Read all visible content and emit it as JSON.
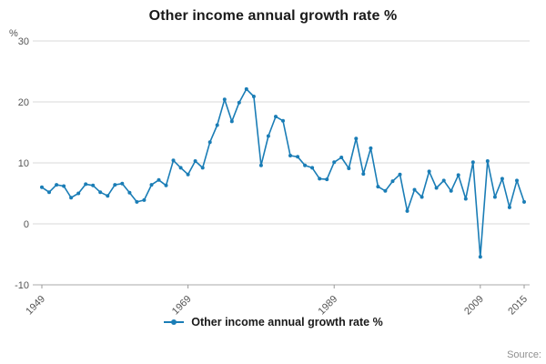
{
  "chart_data": {
    "type": "line",
    "title": "Other income annual growth rate %",
    "y_unit_label": "%",
    "x": [
      1949,
      1950,
      1951,
      1952,
      1953,
      1954,
      1955,
      1956,
      1957,
      1958,
      1959,
      1960,
      1961,
      1962,
      1963,
      1964,
      1965,
      1966,
      1967,
      1968,
      1969,
      1970,
      1971,
      1972,
      1973,
      1974,
      1975,
      1976,
      1977,
      1978,
      1979,
      1980,
      1981,
      1982,
      1983,
      1984,
      1985,
      1986,
      1987,
      1988,
      1989,
      1990,
      1991,
      1992,
      1993,
      1994,
      1995,
      1996,
      1997,
      1998,
      1999,
      2000,
      2001,
      2002,
      2003,
      2004,
      2005,
      2006,
      2007,
      2008,
      2009,
      2010,
      2011,
      2012,
      2013,
      2014,
      2015
    ],
    "series": [
      {
        "name": "Other income annual growth rate %",
        "values": [
          6.0,
          5.2,
          6.4,
          6.2,
          4.3,
          5.0,
          6.5,
          6.3,
          5.2,
          4.6,
          6.4,
          6.6,
          5.1,
          3.6,
          3.9,
          6.4,
          7.2,
          6.3,
          10.4,
          9.2,
          8.1,
          10.3,
          9.2,
          13.4,
          16.2,
          20.4,
          16.8,
          19.9,
          22.1,
          20.9,
          9.6,
          14.4,
          17.6,
          16.9,
          11.2,
          11.0,
          9.6,
          9.2,
          7.4,
          7.3,
          10.1,
          10.9,
          9.1,
          14.0,
          8.2,
          12.4,
          6.1,
          5.4,
          7.0,
          8.1,
          2.1,
          5.6,
          4.4,
          8.6,
          5.9,
          7.1,
          5.4,
          8.0,
          4.1,
          10.1,
          -5.4,
          10.3,
          4.4,
          7.4,
          2.7,
          7.1,
          3.6
        ]
      }
    ],
    "xticks": [
      1949,
      1969,
      1989,
      2009,
      2015
    ],
    "yticks": [
      30,
      20,
      10,
      0,
      -10
    ],
    "ylim": [
      -10,
      30
    ],
    "grid": "horizontal",
    "legend_position": "bottom",
    "line_color": "#1a7db6"
  },
  "legend": {
    "label": "Other income annual growth rate %"
  },
  "source_label": "Source:"
}
